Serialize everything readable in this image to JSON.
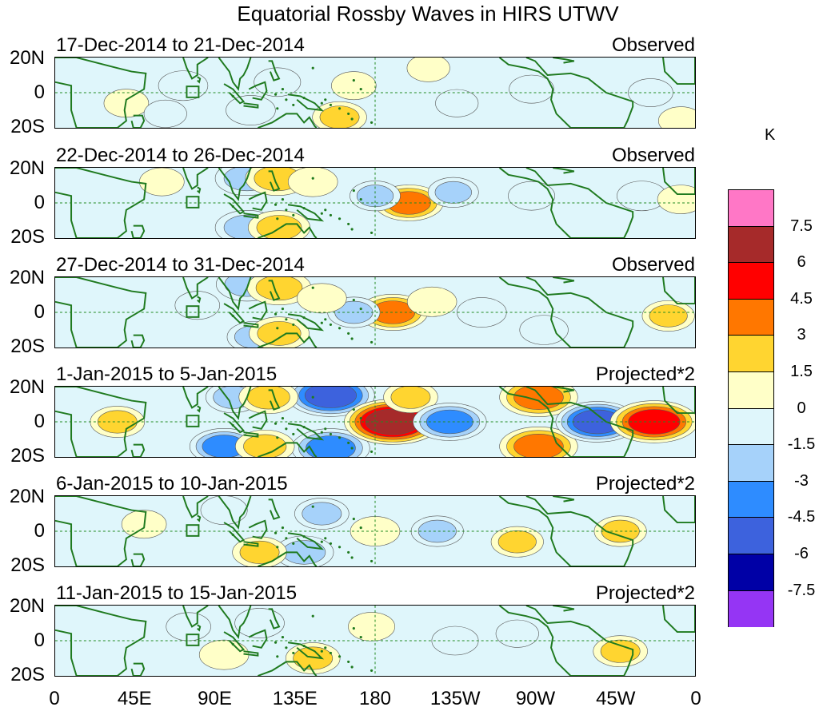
{
  "title": "Equatorial Rossby Waves in HIRS UTWV",
  "panels": [
    {
      "date_range": "17-Dec-2014 to 21-Dec-2014",
      "kind": "Observed",
      "anomalies": [
        {
          "lon": 40,
          "lat": -6,
          "value": 1.0
        },
        {
          "lon": 72,
          "lat": 4,
          "value": -1.5
        },
        {
          "lon": 62,
          "lat": -12,
          "value": -0.8
        },
        {
          "lon": 110,
          "lat": -10,
          "value": -1.5
        },
        {
          "lon": 125,
          "lat": 6,
          "value": -1.2
        },
        {
          "lon": 168,
          "lat": 4,
          "value": 1.0
        },
        {
          "lon": 210,
          "lat": 14,
          "value": 0.8
        },
        {
          "lon": 226,
          "lat": -6,
          "value": -0.8
        },
        {
          "lon": 268,
          "lat": 2,
          "value": -1.0
        },
        {
          "lon": 335,
          "lat": 0,
          "value": -1.0
        },
        {
          "lon": 352,
          "lat": -16,
          "value": 1.0
        },
        {
          "lon": 160,
          "lat": -14,
          "value": 2.0
        }
      ]
    },
    {
      "date_range": "22-Dec-2014 to 26-Dec-2014",
      "kind": "Observed",
      "anomalies": [
        {
          "lon": 108,
          "lat": 14,
          "value": -3.0
        },
        {
          "lon": 108,
          "lat": -14,
          "value": -3.0
        },
        {
          "lon": 125,
          "lat": 14,
          "value": 3.0
        },
        {
          "lon": 126,
          "lat": -14,
          "value": 2.8
        },
        {
          "lon": 145,
          "lat": 12,
          "value": 1.5
        },
        {
          "lon": 199,
          "lat": 0,
          "value": 3.5
        },
        {
          "lon": 180,
          "lat": 4,
          "value": -1.6
        },
        {
          "lon": 224,
          "lat": 6,
          "value": -1.6
        },
        {
          "lon": 268,
          "lat": 4,
          "value": -1.2
        },
        {
          "lon": 330,
          "lat": 4,
          "value": -1.5
        },
        {
          "lon": 352,
          "lat": 2,
          "value": 1.2
        },
        {
          "lon": 60,
          "lat": 12,
          "value": 1.0
        }
      ]
    },
    {
      "date_range": "27-Dec-2014 to 31-Dec-2014",
      "kind": "Observed",
      "anomalies": [
        {
          "lon": 108,
          "lat": 16,
          "value": -2.8
        },
        {
          "lon": 112,
          "lat": -14,
          "value": -2.0
        },
        {
          "lon": 126,
          "lat": 14,
          "value": 3.0
        },
        {
          "lon": 126,
          "lat": -12,
          "value": 2.6
        },
        {
          "lon": 190,
          "lat": 0,
          "value": 3.6
        },
        {
          "lon": 168,
          "lat": 0,
          "value": -1.8
        },
        {
          "lon": 212,
          "lat": 6,
          "value": 1.5
        },
        {
          "lon": 240,
          "lat": 0,
          "value": -1.5
        },
        {
          "lon": 275,
          "lat": -10,
          "value": -1.4
        },
        {
          "lon": 345,
          "lat": -2,
          "value": 1.8
        },
        {
          "lon": 80,
          "lat": 4,
          "value": -1.0
        },
        {
          "lon": 150,
          "lat": 8,
          "value": 1.5
        }
      ]
    },
    {
      "date_range": "1-Jan-2015 to 5-Jan-2015",
      "kind": "Projected*2",
      "anomalies": [
        {
          "lon": 155,
          "lat": 15,
          "value": -5.5
        },
        {
          "lon": 155,
          "lat": -15,
          "value": -4.5
        },
        {
          "lon": 190,
          "lat": 0,
          "value": 6.5
        },
        {
          "lon": 200,
          "lat": 14,
          "value": 2.0
        },
        {
          "lon": 222,
          "lat": 0,
          "value": -4.0
        },
        {
          "lon": 272,
          "lat": 14,
          "value": 4.5
        },
        {
          "lon": 272,
          "lat": -14,
          "value": 4.5
        },
        {
          "lon": 305,
          "lat": 0,
          "value": -5.0
        },
        {
          "lon": 337,
          "lat": 0,
          "value": 5.5
        },
        {
          "lon": 95,
          "lat": -14,
          "value": -3.5
        },
        {
          "lon": 100,
          "lat": 14,
          "value": -2.0
        },
        {
          "lon": 120,
          "lat": 14,
          "value": 2.5
        },
        {
          "lon": 118,
          "lat": -14,
          "value": 2.5
        },
        {
          "lon": 35,
          "lat": 0,
          "value": 2.0
        }
      ]
    },
    {
      "date_range": "6-Jan-2015 to 10-Jan-2015",
      "kind": "Projected*2",
      "anomalies": [
        {
          "lon": 140,
          "lat": -12,
          "value": -2.5
        },
        {
          "lon": 150,
          "lat": 10,
          "value": -2.0
        },
        {
          "lon": 115,
          "lat": -12,
          "value": 2.0
        },
        {
          "lon": 180,
          "lat": 0,
          "value": 1.5
        },
        {
          "lon": 215,
          "lat": 0,
          "value": -1.8
        },
        {
          "lon": 260,
          "lat": -6,
          "value": 1.8
        },
        {
          "lon": 318,
          "lat": 0,
          "value": 1.8
        },
        {
          "lon": 95,
          "lat": 12,
          "value": -1.2
        },
        {
          "lon": 50,
          "lat": 4,
          "value": 1.0
        }
      ]
    },
    {
      "date_range": "11-Jan-2015 to 15-Jan-2015",
      "kind": "Projected*2",
      "anomalies": [
        {
          "lon": 145,
          "lat": -10,
          "value": 2.0
        },
        {
          "lon": 115,
          "lat": 10,
          "value": -1.5
        },
        {
          "lon": 95,
          "lat": -8,
          "value": 1.5
        },
        {
          "lon": 178,
          "lat": 8,
          "value": 1.2
        },
        {
          "lon": 225,
          "lat": 0,
          "value": -1.2
        },
        {
          "lon": 318,
          "lat": -6,
          "value": 2.0
        },
        {
          "lon": 75,
          "lat": 8,
          "value": -1.0
        },
        {
          "lon": 260,
          "lat": 4,
          "value": -0.8
        }
      ]
    }
  ],
  "y_axis_labels": [
    "20N",
    "0",
    "20S"
  ],
  "x_axis_labels": [
    "0",
    "45E",
    "90E",
    "135E",
    "180",
    "135W",
    "90W",
    "45W",
    "0"
  ],
  "x_axis_lons": [
    0,
    45,
    90,
    135,
    180,
    225,
    270,
    315,
    360
  ],
  "lat_range": [
    -20,
    20
  ],
  "colorbar": {
    "unit": "K",
    "labels": [
      "7.5",
      "6",
      "4.5",
      "3",
      "1.5",
      "0",
      "-1.5",
      "-3",
      "-4.5",
      "-6",
      "-7.5"
    ],
    "levels": [
      7.5,
      6,
      4.5,
      3,
      1.5,
      0,
      -1.5,
      -3,
      -4.5,
      -6,
      -7.5
    ],
    "colors": [
      "#ff77c6",
      "#a62a2a",
      "#ff0000",
      "#ff7700",
      "#ffd530",
      "#ffffc8",
      "#dff6fb",
      "#a6d2fa",
      "#2e8cff",
      "#3d62dd",
      "#0000a6",
      "#9535f4"
    ]
  },
  "map_colors": {
    "land": "#1f7a1f",
    "equator": "#228b22"
  }
}
